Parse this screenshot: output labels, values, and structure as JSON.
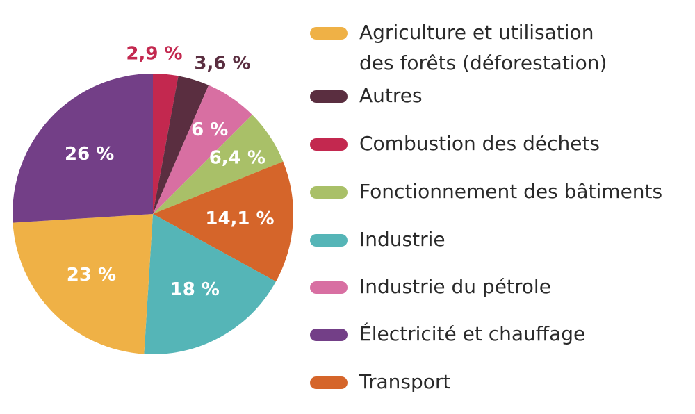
{
  "chart_data": {
    "type": "pie",
    "unit": "%",
    "slices": [
      {
        "label": "Combustion des déchets",
        "value": 2.9,
        "value_label": "2,9 %",
        "color": "#c3284f",
        "label_color": "#c3284f",
        "label_outside": true
      },
      {
        "label": "Autres",
        "value": 3.6,
        "value_label": "3,6 %",
        "color": "#5a2e40",
        "label_color": "#5a2e40",
        "label_outside": true
      },
      {
        "label": "Industrie du pétrole",
        "value": 6.0,
        "value_label": "6 %",
        "color": "#d86fa2",
        "label_color": "#ffffff",
        "label_outside": false
      },
      {
        "label": "Fonctionnement des bâtiments",
        "value": 6.4,
        "value_label": "6,4 %",
        "color": "#a9c068",
        "label_color": "#ffffff",
        "label_outside": false
      },
      {
        "label": "Transport",
        "value": 14.1,
        "value_label": "14,1 %",
        "color": "#d5652a",
        "label_color": "#ffffff",
        "label_outside": false
      },
      {
        "label": "Industrie",
        "value": 18.0,
        "value_label": "18 %",
        "color": "#55b5b7",
        "label_color": "#ffffff",
        "label_outside": false
      },
      {
        "label": "Agriculture et utilisation des forêts (déforestation)",
        "value": 23.0,
        "value_label": "23 %",
        "color": "#efb146",
        "label_color": "#ffffff",
        "label_outside": false
      },
      {
        "label": "Électricité et chauffage",
        "value": 26.0,
        "value_label": "26 %",
        "color": "#733f87",
        "label_color": "#ffffff",
        "label_outside": false
      }
    ],
    "legend": [
      {
        "lines": [
          "Agriculture et utilisation",
          "des forêts (déforestation)"
        ],
        "color": "#efb146"
      },
      {
        "lines": [
          "Autres"
        ],
        "color": "#5a2e40"
      },
      {
        "lines": [
          "Combustion des déchets"
        ],
        "color": "#c3284f"
      },
      {
        "lines": [
          "Fonctionnement des bâtiments"
        ],
        "color": "#a9c068"
      },
      {
        "lines": [
          "Industrie"
        ],
        "color": "#55b5b7"
      },
      {
        "lines": [
          "Industrie du pétrole"
        ],
        "color": "#d86fa2"
      },
      {
        "lines": [
          "Électricité et chauffage"
        ],
        "color": "#733f87"
      },
      {
        "lines": [
          "Transport"
        ],
        "color": "#d5652a"
      }
    ],
    "legend_position": "right"
  }
}
